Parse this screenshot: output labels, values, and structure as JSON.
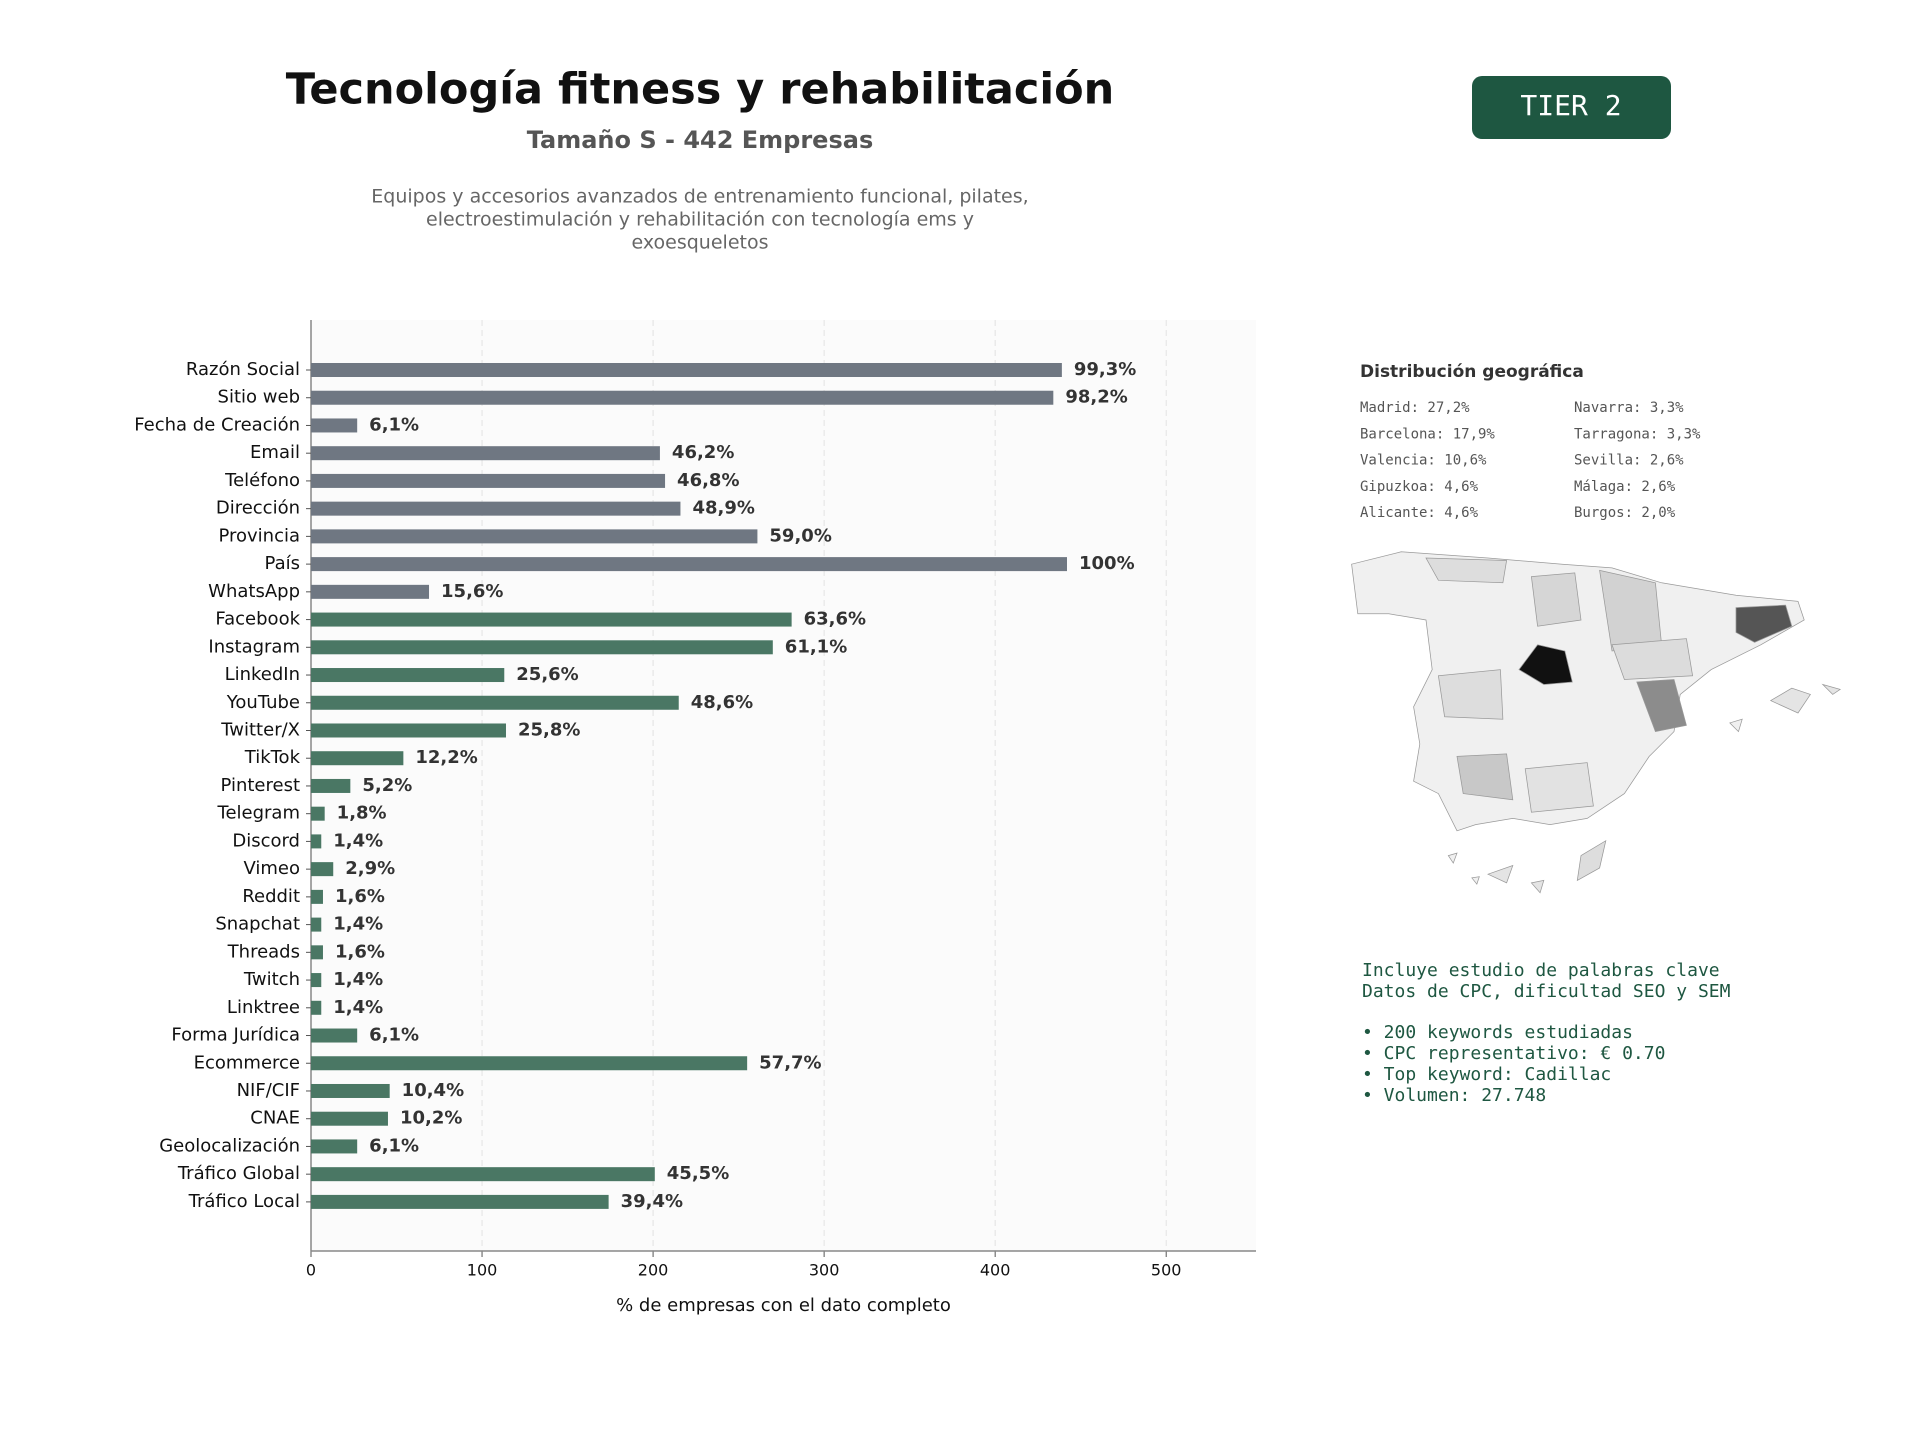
{
  "chart_data": {
    "type": "bar",
    "title": "Tecnología fitness y rehabilitación",
    "subtitle": "Tamaño S - 442 Empresas",
    "description": [
      "Equipos y accesorios avanzados de entrenamiento funcional, pilates,",
      "electroestimulación y rehabilitación con tecnología ems y",
      "exoesqueletos"
    ],
    "xlabel": "% de empresas con el dato completo",
    "categories": [
      "Razón Social",
      "Sitio web",
      "Fecha de Creación",
      "Email",
      "Teléfono",
      "Dirección",
      "Provincia",
      "País",
      "WhatsApp",
      "Facebook",
      "Instagram",
      "LinkedIn",
      "YouTube",
      "Twitter/X",
      "TikTok",
      "Pinterest",
      "Telegram",
      "Discord",
      "Vimeo",
      "Reddit",
      "Snapchat",
      "Threads",
      "Twitch",
      "Linktree",
      "Forma Jurídica",
      "Ecommerce",
      "NIF/CIF",
      "CNAE",
      "Geolocalización",
      "Tráfico Global",
      "Tráfico Local"
    ],
    "values": [
      439,
      434,
      27,
      204,
      207,
      216,
      261,
      442,
      69,
      281,
      270,
      113,
      215,
      114,
      54,
      23,
      8,
      6,
      13,
      7,
      6,
      7,
      6,
      6,
      27,
      255,
      46,
      45,
      27,
      201,
      174
    ],
    "value_labels": [
      "99,3%",
      "98,2%",
      "6,1%",
      "46,2%",
      "46,8%",
      "48,9%",
      "59,0%",
      "100%",
      "15,6%",
      "63,6%",
      "61,1%",
      "25,6%",
      "48,6%",
      "25,8%",
      "12,2%",
      "5,2%",
      "1,8%",
      "1,4%",
      "2,9%",
      "1,6%",
      "1,4%",
      "1,6%",
      "1,4%",
      "1,4%",
      "6,1%",
      "57,7%",
      "10,4%",
      "10,2%",
      "6,1%",
      "45,5%",
      "39,4%"
    ],
    "colors": [
      "#6f7782",
      "#6f7782",
      "#6f7782",
      "#6f7782",
      "#6f7782",
      "#6f7782",
      "#6f7782",
      "#6f7782",
      "#6f7782",
      "#4a7764",
      "#4a7764",
      "#4a7764",
      "#4a7764",
      "#4a7764",
      "#4a7764",
      "#4a7764",
      "#4a7764",
      "#4a7764",
      "#4a7764",
      "#4a7764",
      "#4a7764",
      "#4a7764",
      "#4a7764",
      "#4a7764",
      "#4a7764",
      "#4a7764",
      "#4a7764",
      "#4a7764",
      "#4a7764",
      "#4a7764",
      "#4a7764"
    ],
    "xlim": [
      0,
      552.5
    ],
    "xticks": [
      0,
      100,
      200,
      300,
      400,
      500
    ],
    "grid": true
  },
  "badge": "TIER 2",
  "geo": {
    "title": "Distribución geográfica",
    "entries": [
      "Madrid: 27,2%",
      "Barcelona: 17,9%",
      "Valencia: 10,6%",
      "Gipuzkoa: 4,6%",
      "Alicante: 4,6%",
      "Navarra: 3,3%",
      "Tarragona: 3,3%",
      "Sevilla: 2,6%",
      "Málaga: 2,6%",
      "Burgos: 2,0%"
    ]
  },
  "keywords": {
    "intro": [
      "Incluye estudio de palabras clave",
      "Datos de CPC, dificultad SEO y SEM"
    ],
    "bullets": [
      "• 200 keywords estudiadas",
      "• CPC representativo: € 0.70",
      "• Top keyword: Cadillac",
      "• Volumen: 27.748"
    ]
  }
}
